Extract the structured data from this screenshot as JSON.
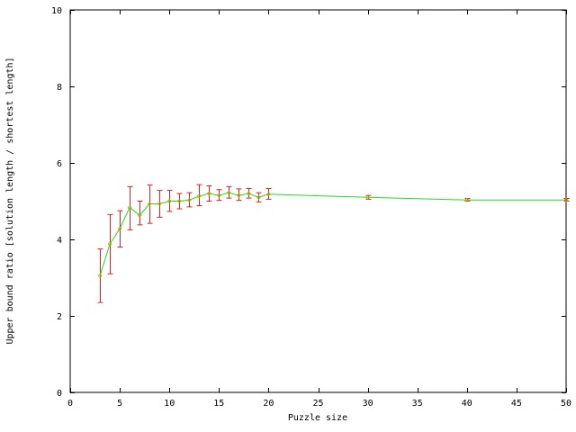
{
  "chart_data": {
    "type": "line",
    "title": "",
    "xlabel": "Puzzle size",
    "ylabel": "Upper bound ratio [solution length / shortest length]",
    "xlim": [
      0,
      50
    ],
    "ylim": [
      0,
      10
    ],
    "x_ticks": [
      "0",
      "5",
      "10",
      "15",
      "20",
      "25",
      "30",
      "35",
      "40",
      "45",
      "50"
    ],
    "y_ticks": [
      "0",
      "2",
      "4",
      "6",
      "8",
      "10"
    ],
    "grid": false,
    "legend": "none",
    "colors": {
      "line": "#22dd22",
      "errorbar": "#dd2222",
      "axis": "#000000"
    },
    "series": [
      {
        "x": [
          3,
          4,
          5,
          6,
          7,
          8,
          9,
          10,
          11,
          12,
          13,
          14,
          15,
          16,
          17,
          18,
          19,
          20,
          30,
          40,
          50
        ],
        "y": [
          3.05,
          3.88,
          4.28,
          4.83,
          4.63,
          4.93,
          4.93,
          5.0,
          5.0,
          5.03,
          5.13,
          5.2,
          5.15,
          5.22,
          5.15,
          5.2,
          5.1,
          5.18,
          5.1,
          5.03,
          5.03
        ],
        "yerr_low": [
          2.35,
          3.1,
          3.8,
          4.25,
          4.38,
          4.42,
          4.58,
          4.73,
          4.8,
          4.85,
          4.88,
          5.0,
          5.02,
          5.08,
          5.02,
          5.08,
          4.98,
          5.05,
          5.05,
          5.0,
          5.0
        ],
        "yerr_high": [
          3.75,
          4.65,
          4.75,
          5.38,
          5.0,
          5.42,
          5.28,
          5.28,
          5.2,
          5.22,
          5.43,
          5.4,
          5.3,
          5.38,
          5.32,
          5.33,
          5.22,
          5.33,
          5.15,
          5.07,
          5.07
        ]
      }
    ]
  }
}
